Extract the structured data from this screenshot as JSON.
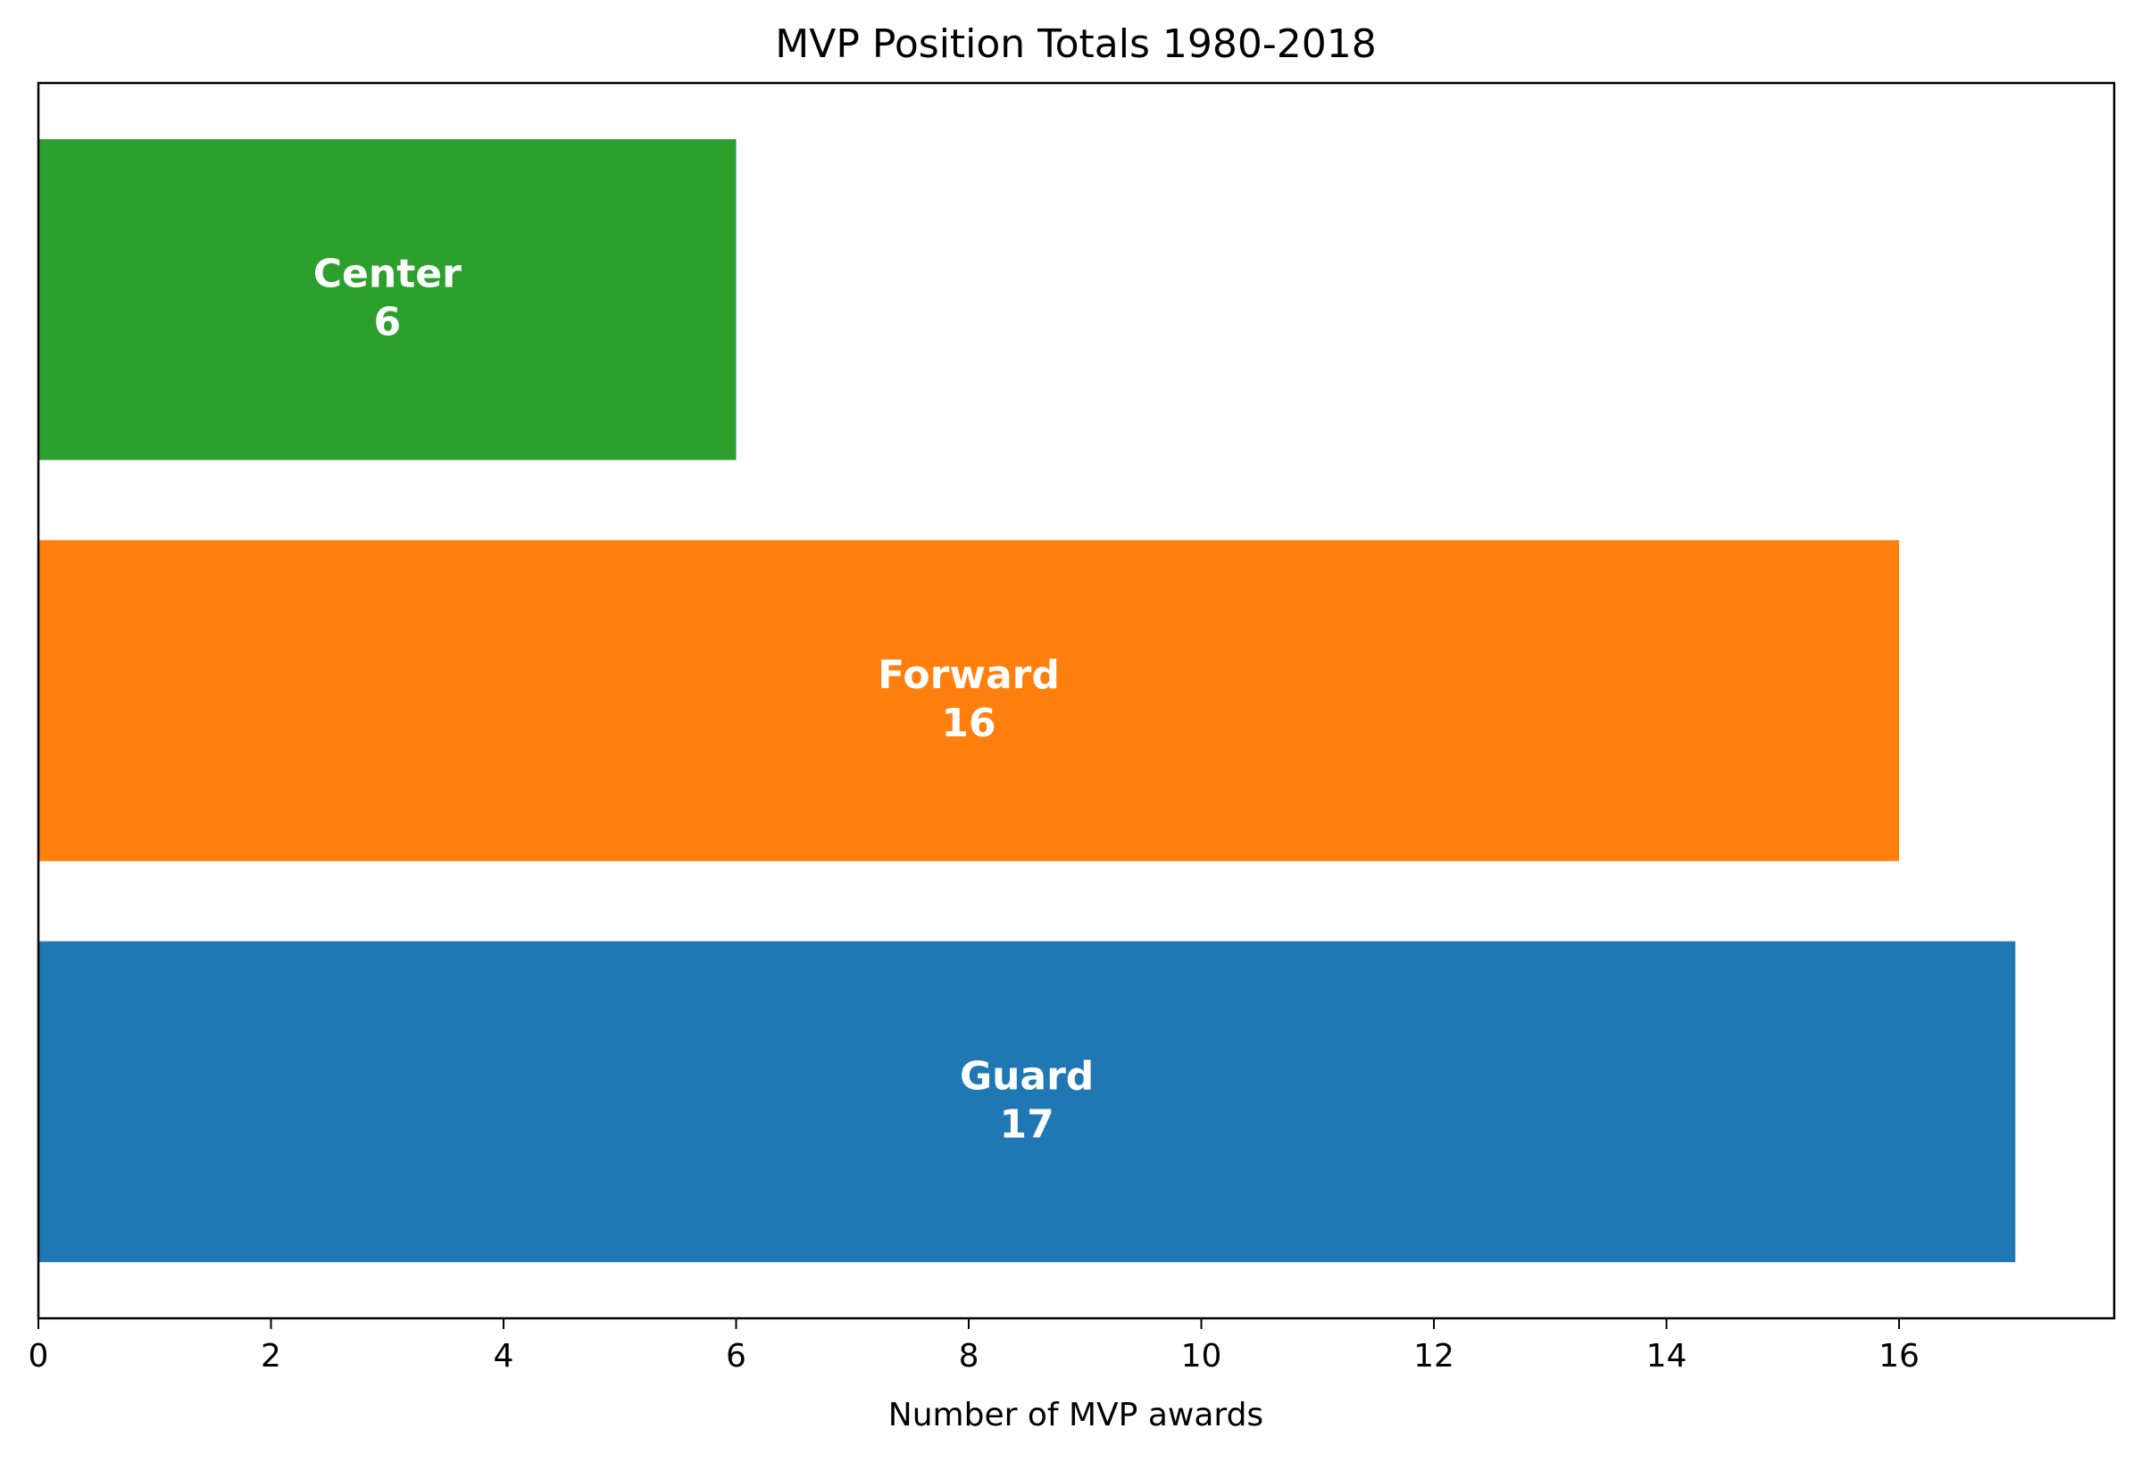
{
  "chart_data": {
    "type": "bar",
    "orientation": "horizontal",
    "title": "MVP Position Totals 1980-2018",
    "xlabel": "Number of MVP awards",
    "ylabel": "",
    "xlim": [
      0,
      17.85
    ],
    "xticks": [
      0,
      2,
      4,
      6,
      8,
      10,
      12,
      14,
      16
    ],
    "categories": [
      "Guard",
      "Forward",
      "Center"
    ],
    "values": [
      17,
      16,
      6
    ],
    "colors": [
      "#1f77b4",
      "#ff7f0e",
      "#2ca02c"
    ],
    "grid": false,
    "legend": "none"
  }
}
